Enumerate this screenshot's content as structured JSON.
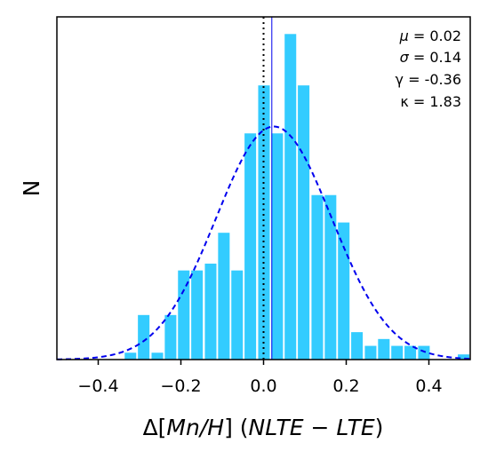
{
  "chart_data": {
    "type": "bar",
    "xlabel_prefix": "Δ[",
    "xlabel_species": "Mn/H",
    "xlabel_mid": "] (",
    "xlabel_method": "NLTE − LTE",
    "xlabel_suffix": ")",
    "ylabel": "N",
    "xlim": [
      -0.5,
      0.5
    ],
    "ylim": [
      0,
      100
    ],
    "x_ticks": [
      {
        "value": -0.4,
        "label": "−0.4"
      },
      {
        "value": -0.2,
        "label": "−0.2"
      },
      {
        "value": 0.0,
        "label": "0.0"
      },
      {
        "value": 0.2,
        "label": "0.2"
      },
      {
        "value": 0.4,
        "label": "0.4"
      }
    ],
    "bin_width": 0.0323,
    "bins": [
      {
        "center": -0.451,
        "count": 0
      },
      {
        "center": -0.419,
        "count": 0
      },
      {
        "center": -0.386,
        "count": 0
      },
      {
        "center": -0.354,
        "count": 0
      },
      {
        "center": -0.322,
        "count": 2
      },
      {
        "center": -0.29,
        "count": 13
      },
      {
        "center": -0.257,
        "count": 2
      },
      {
        "center": -0.225,
        "count": 13
      },
      {
        "center": -0.193,
        "count": 26
      },
      {
        "center": -0.161,
        "count": 26
      },
      {
        "center": -0.128,
        "count": 28
      },
      {
        "center": -0.096,
        "count": 37
      },
      {
        "center": -0.064,
        "count": 26
      },
      {
        "center": -0.032,
        "count": 66
      },
      {
        "center": 0.001,
        "count": 80
      },
      {
        "center": 0.033,
        "count": 66
      },
      {
        "center": 0.065,
        "count": 95
      },
      {
        "center": 0.097,
        "count": 80
      },
      {
        "center": 0.13,
        "count": 48
      },
      {
        "center": 0.162,
        "count": 48
      },
      {
        "center": 0.194,
        "count": 40
      },
      {
        "center": 0.226,
        "count": 8
      },
      {
        "center": 0.259,
        "count": 4
      },
      {
        "center": 0.291,
        "count": 6
      },
      {
        "center": 0.323,
        "count": 4
      },
      {
        "center": 0.355,
        "count": 4
      },
      {
        "center": 0.388,
        "count": 4
      },
      {
        "center": 0.42,
        "count": 0
      },
      {
        "center": 0.452,
        "count": 0
      },
      {
        "center": 0.484,
        "count": 1.5
      }
    ],
    "gaussian": {
      "mu": 0.025,
      "sigma": 0.14,
      "peak": 68,
      "color": "#0000ee"
    },
    "bar_color": "#33ccff",
    "mean_line": {
      "x": 0.02,
      "color": "#0000ee"
    },
    "zero_line": {
      "x": 0.0,
      "color": "#000000"
    },
    "grid": false,
    "legend_position": "top-right",
    "stats": [
      {
        "symbol": "μ",
        "italic": true,
        "value": " = 0.02"
      },
      {
        "symbol": "σ",
        "italic": true,
        "value": " = 0.14"
      },
      {
        "symbol": "γ",
        "italic": false,
        "value": " = -0.36"
      },
      {
        "symbol": "κ",
        "italic": false,
        "value": " = 1.83"
      }
    ]
  }
}
